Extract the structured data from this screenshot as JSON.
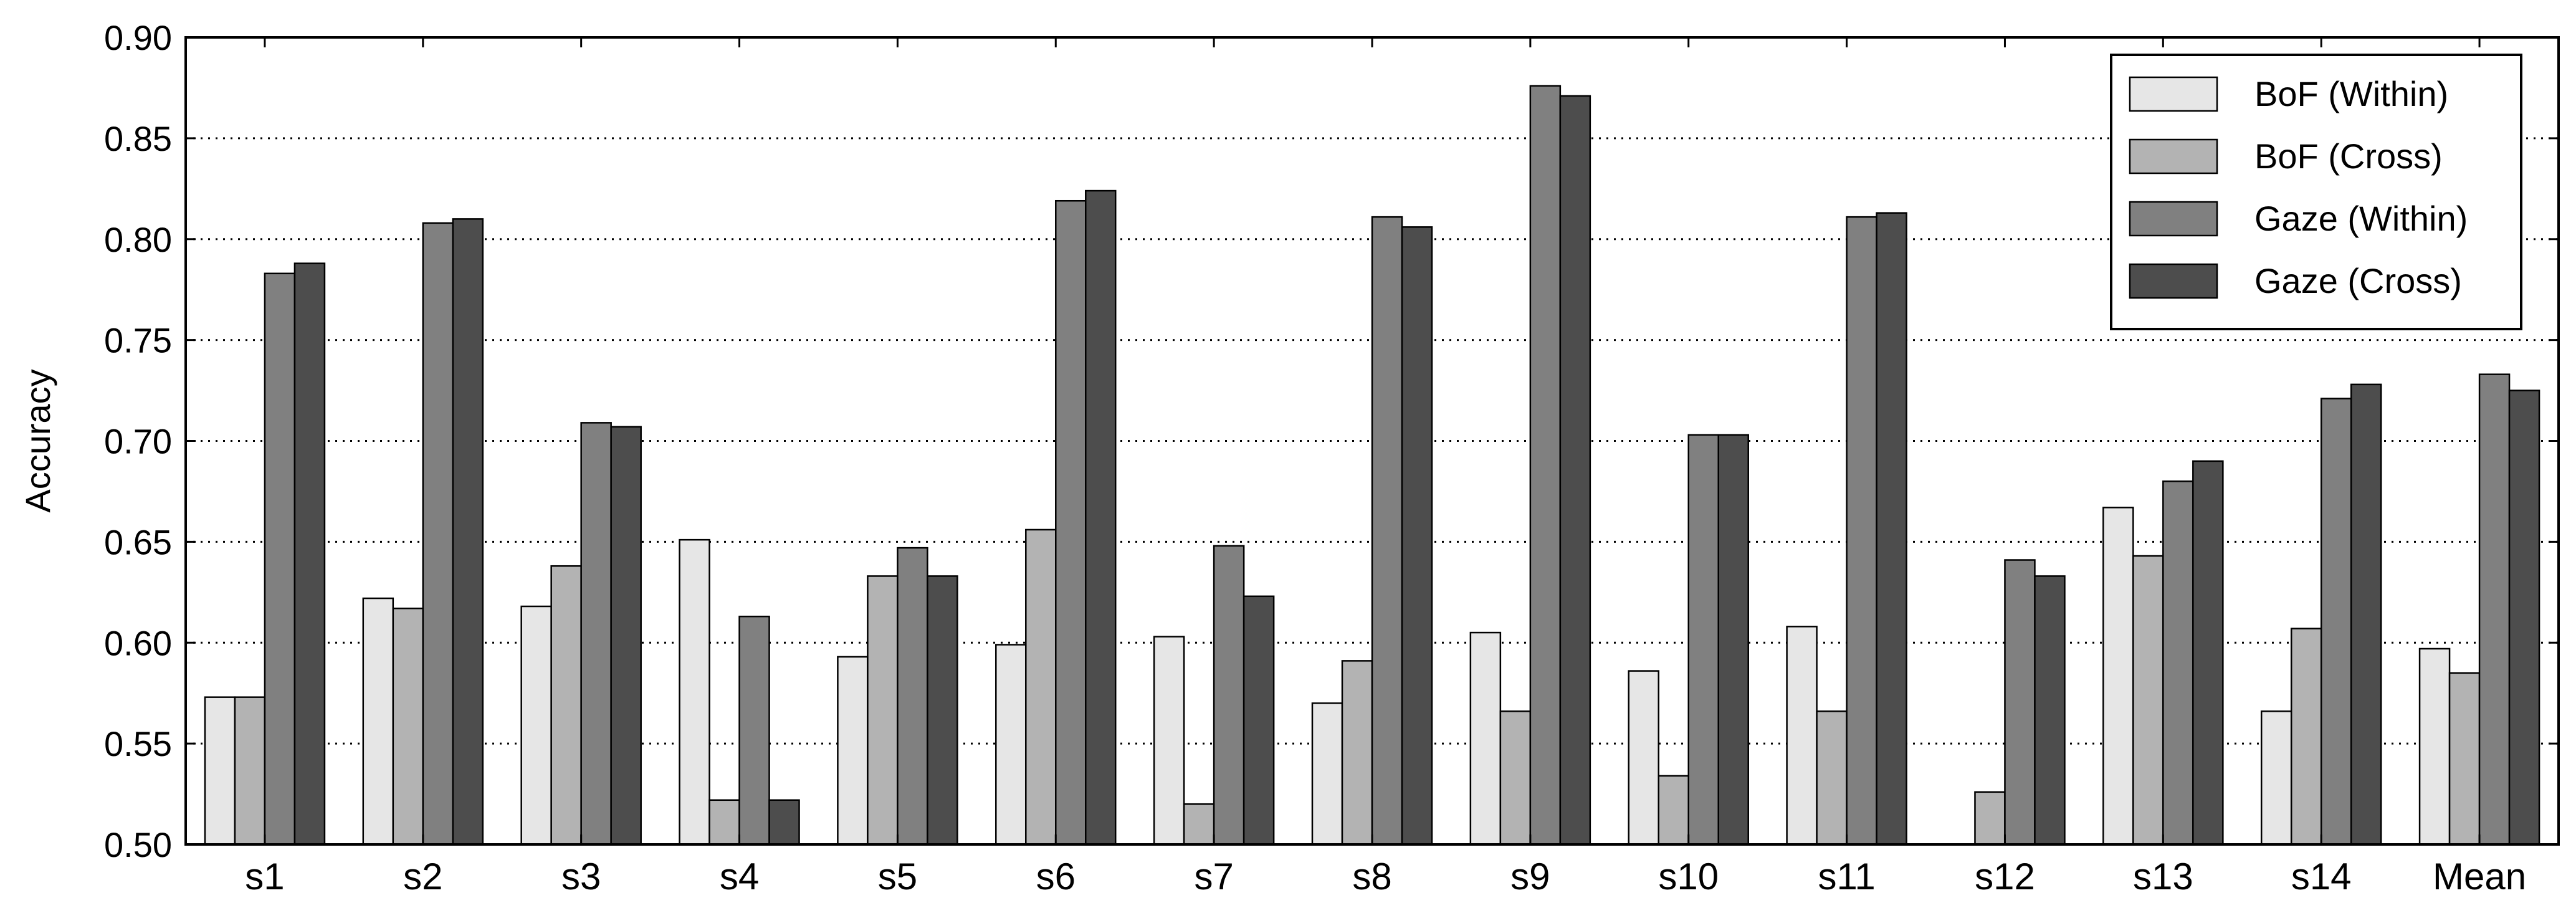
{
  "chart_data": {
    "type": "bar",
    "title": "",
    "xlabel": "",
    "ylabel": "Accuracy",
    "ylim": [
      0.5,
      0.9
    ],
    "yticks": [
      "0.50",
      "0.55",
      "0.60",
      "0.65",
      "0.70",
      "0.75",
      "0.80",
      "0.85",
      "0.90"
    ],
    "grid": "horizontal-dotted",
    "legend_position": "top-right",
    "categories": [
      "s1",
      "s2",
      "s3",
      "s4",
      "s5",
      "s6",
      "s7",
      "s8",
      "s9",
      "s10",
      "s11",
      "s12",
      "s13",
      "s14",
      "Mean"
    ],
    "series": [
      {
        "name": "BoF (Within)",
        "color": "#e6e6e6",
        "values": [
          0.573,
          0.622,
          0.618,
          0.651,
          0.593,
          0.599,
          0.603,
          0.57,
          0.605,
          0.586,
          0.608,
          0.5,
          0.667,
          0.566,
          0.597
        ]
      },
      {
        "name": "BoF (Cross)",
        "color": "#b3b3b3",
        "values": [
          0.573,
          0.617,
          0.638,
          0.522,
          0.633,
          0.656,
          0.52,
          0.591,
          0.566,
          0.534,
          0.566,
          0.526,
          0.643,
          0.607,
          0.585
        ]
      },
      {
        "name": "Gaze (Within)",
        "color": "#808080",
        "values": [
          0.783,
          0.808,
          0.709,
          0.613,
          0.647,
          0.819,
          0.648,
          0.811,
          0.876,
          0.703,
          0.811,
          0.641,
          0.68,
          0.721,
          0.733
        ]
      },
      {
        "name": "Gaze (Cross)",
        "color": "#4d4d4d",
        "values": [
          0.788,
          0.81,
          0.707,
          0.522,
          0.633,
          0.824,
          0.623,
          0.806,
          0.871,
          0.703,
          0.813,
          0.633,
          0.69,
          0.728,
          0.725
        ]
      }
    ]
  }
}
